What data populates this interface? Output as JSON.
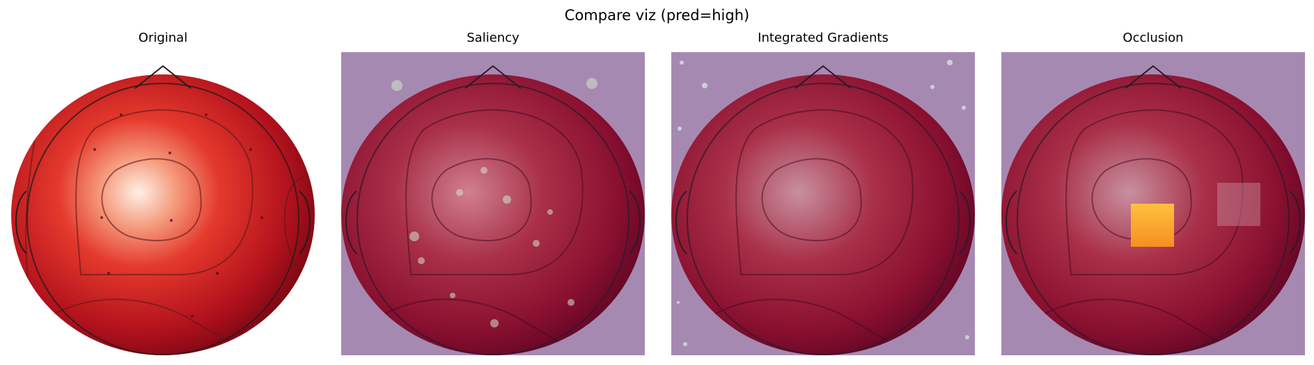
{
  "figure": {
    "title": "Compare viz (pred=high)",
    "panels": [
      {
        "title": "Original",
        "overlay": "none"
      },
      {
        "title": "Saliency",
        "overlay": "saliency"
      },
      {
        "title": "Integrated Gradients",
        "overlay": "integrated-gradients"
      },
      {
        "title": "Occlusion",
        "overlay": "occlusion"
      }
    ]
  },
  "colors": {
    "background_tint": "#a689b1",
    "map_dark": "#5a0010",
    "map_mid": "#d42a22",
    "map_light": "#fff0e6",
    "occlusion_patch": "#ffb030"
  }
}
